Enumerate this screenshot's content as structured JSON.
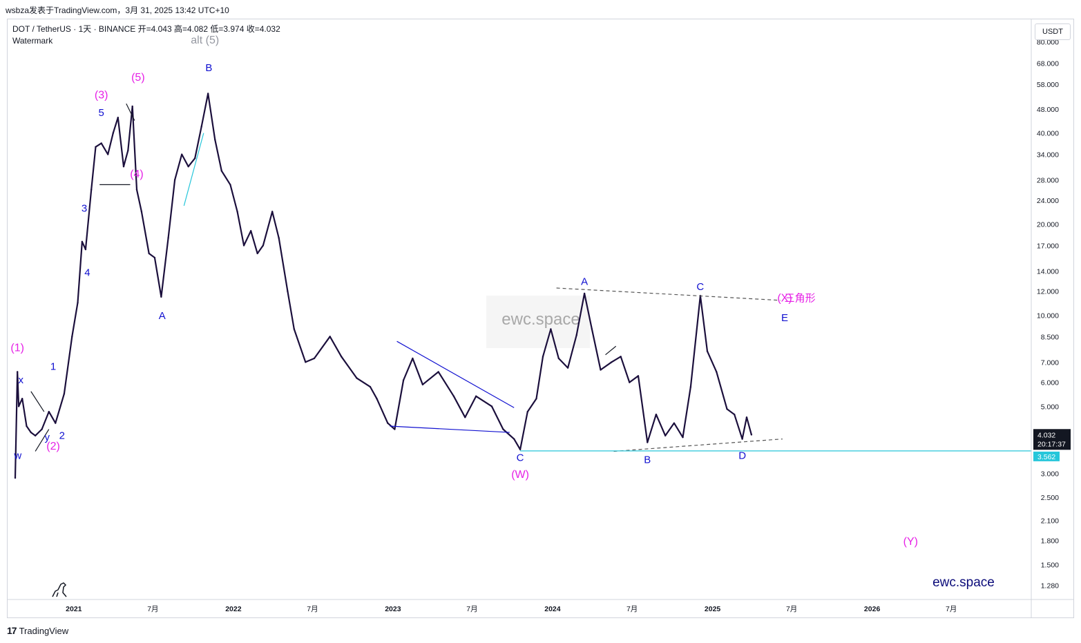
{
  "header": {
    "publish_line": "wsbza发表于TradingView.com，3月 31, 2025 13:42 UTC+10"
  },
  "legend": {
    "symbol_line": "DOT / TetherUS · 1天 · BINANCE  开=4.043  高=4.082  低=3.974  收=4.032",
    "watermark_label": "Watermark"
  },
  "price_scale": {
    "currency": "USDT",
    "tick_labels": [
      "80.000",
      "68.000",
      "58.000",
      "48.000",
      "40.000",
      "34.000",
      "28.000",
      "24.000",
      "20.000",
      "17.000",
      "14.000",
      "12.000",
      "10.000",
      "8.500",
      "7.000",
      "6.000",
      "5.000",
      "4.032",
      "3.000",
      "2.500",
      "2.100",
      "1.800",
      "1.500",
      "1.280"
    ]
  },
  "badges": {
    "last_price": "4.032",
    "countdown": "20:17:37",
    "level": "3.562",
    "last_price_color": "#131722",
    "level_color": "#26c6da"
  },
  "time_scale": {
    "tick_labels": [
      "2021",
      "7月",
      "2022",
      "7月",
      "2023",
      "7月",
      "2024",
      "7月",
      "2025",
      "7月",
      "2026",
      "7月"
    ]
  },
  "watermarks": {
    "center": "ewc.space",
    "corner": "ewc.space"
  },
  "footer": {
    "brand": "TradingView"
  },
  "colors": {
    "candles": "#1b0f3c",
    "magenta": "#e620e6",
    "blue": "#1010d0",
    "cyan": "#26c6da",
    "grey_label": "#9598a1"
  },
  "chart_data": {
    "type": "line",
    "title": "DOT / TetherUS · 1天 · BINANCE",
    "y_scale": "log",
    "ylim": [
      1.15,
      95
    ],
    "x_range": [
      "2020-08",
      "2026-12"
    ],
    "series": [
      {
        "name": "DOT / TetherUS",
        "points": [
          [
            "2020-08-20",
            2.9
          ],
          [
            "2020-08-25",
            6.5
          ],
          [
            "2020-08-28",
            5.0
          ],
          [
            "2020-09-05",
            5.3
          ],
          [
            "2020-09-15",
            4.3
          ],
          [
            "2020-09-25",
            4.1
          ],
          [
            "2020-10-05",
            4.0
          ],
          [
            "2020-10-20",
            4.2
          ],
          [
            "2020-11-05",
            4.8
          ],
          [
            "2020-11-20",
            4.4
          ],
          [
            "2020-12-10",
            5.5
          ],
          [
            "2020-12-28",
            8.5
          ],
          [
            "2021-01-10",
            11.0
          ],
          [
            "2021-01-20",
            17.5
          ],
          [
            "2021-01-28",
            16.5
          ],
          [
            "2021-02-10",
            26.0
          ],
          [
            "2021-02-20",
            36.0
          ],
          [
            "2021-03-05",
            37.0
          ],
          [
            "2021-03-20",
            34.0
          ],
          [
            "2021-04-01",
            40.0
          ],
          [
            "2021-04-12",
            45.0
          ],
          [
            "2021-04-25",
            31.0
          ],
          [
            "2021-05-05",
            35.0
          ],
          [
            "2021-05-15",
            49.0
          ],
          [
            "2021-05-25",
            26.0
          ],
          [
            "2021-06-05",
            22.0
          ],
          [
            "2021-06-22",
            16.0
          ],
          [
            "2021-07-05",
            15.5
          ],
          [
            "2021-07-20",
            11.5
          ],
          [
            "2021-08-05",
            18.0
          ],
          [
            "2021-08-20",
            28.0
          ],
          [
            "2021-09-05",
            34.0
          ],
          [
            "2021-09-20",
            31.0
          ],
          [
            "2021-10-05",
            33.0
          ],
          [
            "2021-10-20",
            42.0
          ],
          [
            "2021-11-04",
            54.0
          ],
          [
            "2021-11-20",
            38.0
          ],
          [
            "2021-12-05",
            30.0
          ],
          [
            "2021-12-25",
            27.0
          ],
          [
            "2022-01-10",
            22.0
          ],
          [
            "2022-01-25",
            17.0
          ],
          [
            "2022-02-10",
            19.0
          ],
          [
            "2022-02-25",
            16.0
          ],
          [
            "2022-03-10",
            17.0
          ],
          [
            "2022-03-31",
            22.0
          ],
          [
            "2022-04-15",
            18.0
          ],
          [
            "2022-05-05",
            12.0
          ],
          [
            "2022-05-20",
            9.0
          ],
          [
            "2022-06-15",
            7.0
          ],
          [
            "2022-07-05",
            7.2
          ],
          [
            "2022-08-10",
            8.5
          ],
          [
            "2022-09-05",
            7.3
          ],
          [
            "2022-10-10",
            6.2
          ],
          [
            "2022-11-10",
            5.8
          ],
          [
            "2022-11-25",
            5.3
          ],
          [
            "2022-12-20",
            4.4
          ],
          [
            "2023-01-05",
            4.2
          ],
          [
            "2023-01-25",
            6.1
          ],
          [
            "2023-02-15",
            7.2
          ],
          [
            "2023-03-10",
            5.9
          ],
          [
            "2023-04-15",
            6.5
          ],
          [
            "2023-05-20",
            5.4
          ],
          [
            "2023-06-15",
            4.6
          ],
          [
            "2023-07-10",
            5.4
          ],
          [
            "2023-08-15",
            5.0
          ],
          [
            "2023-09-10",
            4.2
          ],
          [
            "2023-10-05",
            3.9
          ],
          [
            "2023-10-19",
            3.6
          ],
          [
            "2023-11-05",
            4.8
          ],
          [
            "2023-11-25",
            5.3
          ],
          [
            "2023-12-10",
            7.3
          ],
          [
            "2023-12-28",
            9.0
          ],
          [
            "2024-01-15",
            7.2
          ],
          [
            "2024-02-05",
            6.7
          ],
          [
            "2024-02-25",
            8.6
          ],
          [
            "2024-03-14",
            11.8
          ],
          [
            "2024-03-31",
            9.0
          ],
          [
            "2024-04-20",
            6.6
          ],
          [
            "2024-05-15",
            7.0
          ],
          [
            "2024-06-05",
            7.3
          ],
          [
            "2024-06-25",
            6.0
          ],
          [
            "2024-07-15",
            6.3
          ],
          [
            "2024-08-05",
            3.8
          ],
          [
            "2024-08-25",
            4.7
          ],
          [
            "2024-09-15",
            4.0
          ],
          [
            "2024-10-05",
            4.4
          ],
          [
            "2024-10-25",
            3.95
          ],
          [
            "2024-11-12",
            5.8
          ],
          [
            "2024-12-04",
            11.6
          ],
          [
            "2024-12-20",
            7.6
          ],
          [
            "2025-01-10",
            6.5
          ],
          [
            "2025-02-03",
            4.9
          ],
          [
            "2025-02-20",
            4.7
          ],
          [
            "2025-03-10",
            3.9
          ],
          [
            "2025-03-20",
            4.6
          ],
          [
            "2025-03-31",
            4.03
          ]
        ]
      }
    ],
    "last": {
      "open": 4.043,
      "high": 4.082,
      "low": 3.974,
      "close": 4.032
    },
    "annotations": [
      {
        "text": "(1)",
        "color": "magenta",
        "date": "2020-08-25",
        "price": 7.6
      },
      {
        "text": "x",
        "color": "blue",
        "date": "2020-09-02",
        "price": 5.95
      },
      {
        "text": "w",
        "color": "blue",
        "date": "2020-08-26",
        "price": 3.35
      },
      {
        "text": "y",
        "color": "blue",
        "date": "2020-11-01",
        "price": 3.85
      },
      {
        "text": "1",
        "color": "blue",
        "date": "2020-11-15",
        "price": 6.6
      },
      {
        "text": "2",
        "color": "blue",
        "date": "2020-12-05",
        "price": 3.9
      },
      {
        "text": "(2)",
        "color": "magenta",
        "date": "2020-11-15",
        "price": 3.6
      },
      {
        "text": "3",
        "color": "blue",
        "date": "2021-01-25",
        "price": 22.0
      },
      {
        "text": "4",
        "color": "blue",
        "date": "2021-02-01",
        "price": 13.5
      },
      {
        "text": "5",
        "color": "blue",
        "date": "2021-03-05",
        "price": 45.5
      },
      {
        "text": "(3)",
        "color": "magenta",
        "date": "2021-03-05",
        "price": 52.0
      },
      {
        "text": "(4)",
        "color": "magenta",
        "date": "2021-05-25",
        "price": 28.5
      },
      {
        "text": "(5)",
        "color": "magenta",
        "date": "2021-05-28",
        "price": 59.5
      },
      {
        "text": "alt (5)",
        "color": "grey",
        "date": "2021-10-28",
        "price": 79.0
      },
      {
        "text": "B",
        "color": "blue",
        "date": "2021-11-06",
        "price": 64.0
      },
      {
        "text": "A",
        "color": "blue",
        "date": "2021-07-22",
        "price": 9.7
      },
      {
        "text": "C",
        "color": "blue",
        "date": "2023-10-19",
        "price": 3.3
      },
      {
        "text": "(W)",
        "color": "magenta",
        "date": "2023-10-19",
        "price": 2.9
      },
      {
        "text": "A",
        "color": "blue",
        "date": "2024-03-14",
        "price": 12.6
      },
      {
        "text": "B",
        "color": "blue",
        "date": "2024-08-05",
        "price": 3.25
      },
      {
        "text": "C",
        "color": "blue",
        "date": "2024-12-04",
        "price": 12.1
      },
      {
        "text": "D",
        "color": "blue",
        "date": "2025-03-10",
        "price": 3.35
      },
      {
        "text": "(X)",
        "color": "magenta",
        "date": "2025-06-15",
        "price": 11.1
      },
      {
        "text": "三角形",
        "color": "magenta",
        "date": "2025-07-20",
        "price": 11.1
      },
      {
        "text": "E",
        "color": "blue",
        "date": "2025-06-15",
        "price": 9.55
      },
      {
        "text": "(Y)",
        "color": "magenta",
        "date": "2026-03-30",
        "price": 1.74
      }
    ],
    "trendlines": [
      {
        "style": "dashed",
        "color": "#555",
        "from": [
          "2024-01-10",
          12.3
        ],
        "to": [
          "2025-06-05",
          11.2
        ]
      },
      {
        "style": "dashed",
        "color": "#555",
        "from": [
          "2024-05-20",
          3.55
        ],
        "to": [
          "2025-06-10",
          3.9
        ]
      },
      {
        "style": "solid",
        "color": "#26c6da",
        "from": [
          "2023-10-19",
          3.562
        ],
        "to": [
          "2027-01-01",
          3.562
        ]
      },
      {
        "style": "solid",
        "color": "#1010d0",
        "from": [
          "2023-01-10",
          8.2
        ],
        "to": [
          "2023-10-05",
          4.95
        ]
      },
      {
        "style": "solid",
        "color": "#1010d0",
        "from": [
          "2022-12-25",
          4.3
        ],
        "to": [
          "2023-09-25",
          4.1
        ]
      },
      {
        "style": "solid",
        "color": "#26c6da",
        "from": [
          "2021-09-10",
          23.0
        ],
        "to": [
          "2021-10-25",
          40.0
        ]
      },
      {
        "style": "solid",
        "color": "#131722",
        "from": [
          "2021-03-01",
          27.0
        ],
        "to": [
          "2021-05-10",
          27.0
        ]
      },
      {
        "style": "solid",
        "color": "#131722",
        "from": [
          "2021-05-01",
          50.0
        ],
        "to": [
          "2021-05-20",
          44.0
        ]
      },
      {
        "style": "solid",
        "color": "#131722",
        "from": [
          "2020-09-25",
          5.6
        ],
        "to": [
          "2020-10-25",
          4.8
        ]
      },
      {
        "style": "solid",
        "color": "#131722",
        "from": [
          "2020-10-05",
          3.55
        ],
        "to": [
          "2020-11-05",
          4.2
        ]
      },
      {
        "style": "solid",
        "color": "#131722",
        "from": [
          "2024-05-01",
          7.4
        ],
        "to": [
          "2024-05-25",
          7.9
        ]
      }
    ]
  }
}
